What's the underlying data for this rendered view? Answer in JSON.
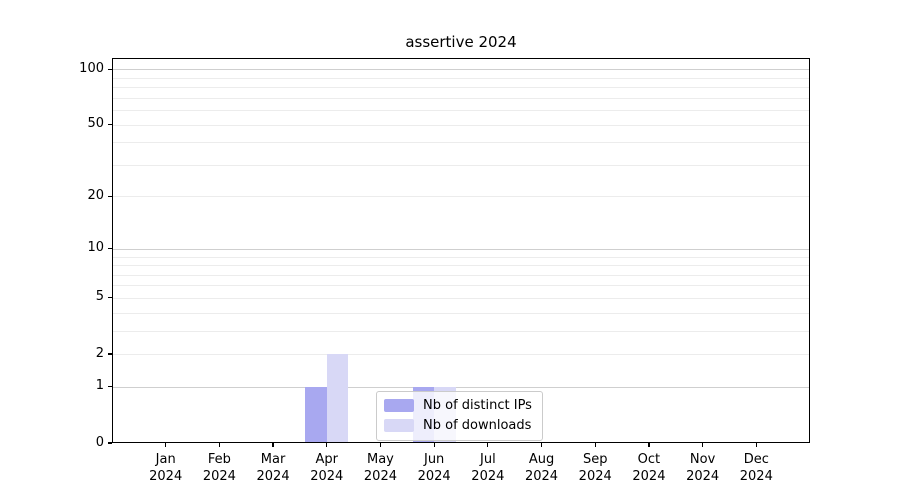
{
  "title": "assertive 2024",
  "chart_data": {
    "type": "bar",
    "title": "assertive 2024",
    "scale": "log10(1+y)",
    "categories": [
      "Jan",
      "Feb",
      "Mar",
      "Apr",
      "May",
      "Jun",
      "Jul",
      "Aug",
      "Sep",
      "Oct",
      "Nov",
      "Dec"
    ],
    "category_year": "2024",
    "series": [
      {
        "name": "Nb of distinct IPs",
        "color": "#a8a8f0",
        "values": [
          0,
          0,
          0,
          1,
          0,
          1,
          0,
          0,
          0,
          0,
          0,
          0
        ]
      },
      {
        "name": "Nb of downloads",
        "color": "#d8d8f6",
        "values": [
          0,
          0,
          0,
          2,
          0,
          1,
          0,
          0,
          0,
          0,
          0,
          0
        ]
      }
    ],
    "xlabel": "",
    "ylabel": "",
    "ylim": [
      0,
      115
    ],
    "ytick_values": [
      0,
      1,
      2,
      5,
      10,
      20,
      50,
      100
    ],
    "ytick_labels": [
      "0",
      "1",
      "2",
      "5",
      "10",
      "20",
      "50",
      "100"
    ],
    "grid": {
      "major_values": [
        1,
        10,
        100
      ],
      "minor_values": [
        2,
        3,
        4,
        5,
        6,
        7,
        8,
        9,
        20,
        30,
        40,
        50,
        60,
        70,
        80,
        90
      ],
      "major_color": "#cfcfcf",
      "minor_color": "#ececec"
    },
    "legend": {
      "position": "lower-center",
      "entries": [
        "Nb of distinct IPs",
        "Nb of downloads"
      ]
    },
    "axis_color": "#000000",
    "background_color": "#ffffff"
  }
}
